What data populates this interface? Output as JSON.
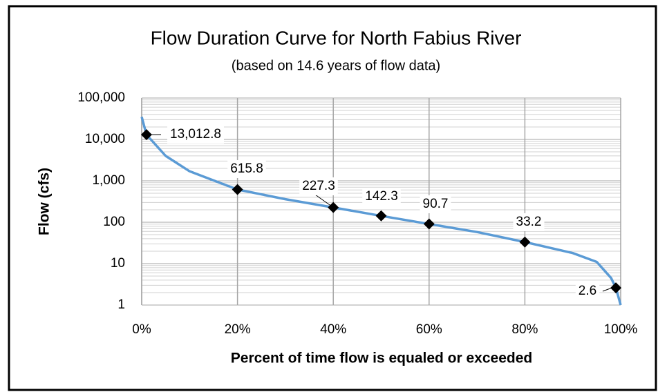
{
  "chart_data": {
    "type": "line",
    "title": "Flow Duration Curve for North Fabius River",
    "subtitle": "(based on 14.6 years of flow data)",
    "x_label": "Percent of time flow is equaled or exceeded",
    "y_label": "Flow (cfs)",
    "log_y": true,
    "grid": true,
    "color": "#5b9bd5",
    "x": [
      0,
      1,
      5,
      10,
      20,
      30,
      40,
      50,
      60,
      70,
      80,
      90,
      95,
      98,
      99,
      100
    ],
    "values": [
      35000,
      13012.8,
      4000,
      1700,
      615.8,
      360,
      227.3,
      142.3,
      90.7,
      58,
      33.2,
      18,
      11,
      4.5,
      2.6,
      1
    ],
    "points": {
      "color": "#000000",
      "x": [
        1,
        20,
        40,
        50,
        60,
        80,
        99
      ],
      "values": [
        13012.8,
        615.8,
        227.3,
        142.3,
        90.7,
        33.2,
        2.6
      ],
      "value_labels": [
        "13,012.8",
        "615.8",
        "227.3",
        "142.3",
        "90.7",
        "33.2",
        "2.6"
      ]
    },
    "xlim": [
      0,
      100
    ],
    "xticks": [
      {
        "value": 0,
        "label": "0%"
      },
      {
        "value": 20,
        "label": "20%"
      },
      {
        "value": 40,
        "label": "40%"
      },
      {
        "value": 60,
        "label": "60%"
      },
      {
        "value": 80,
        "label": "80%"
      },
      {
        "value": 100,
        "label": "100%"
      }
    ],
    "ylim": [
      1,
      100000
    ],
    "yticks": [
      1,
      10,
      100,
      {
        "value": 1000,
        "label": "1,000"
      },
      {
        "value": 10000,
        "label": "10,000"
      },
      {
        "value": 100000,
        "label": "100,000"
      }
    ]
  }
}
